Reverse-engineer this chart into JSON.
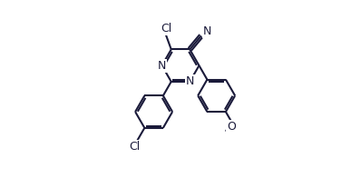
{
  "bg_color": "#ffffff",
  "line_color": "#1a1a3a",
  "lw": 1.5,
  "dbo": 0.012,
  "figsize": [
    3.98,
    1.96
  ],
  "dpi": 100,
  "fs": 9.0,
  "shrink": 0.08,
  "xlim": [
    -0.05,
    1.05
  ],
  "ylim": [
    -0.55,
    0.55
  ]
}
